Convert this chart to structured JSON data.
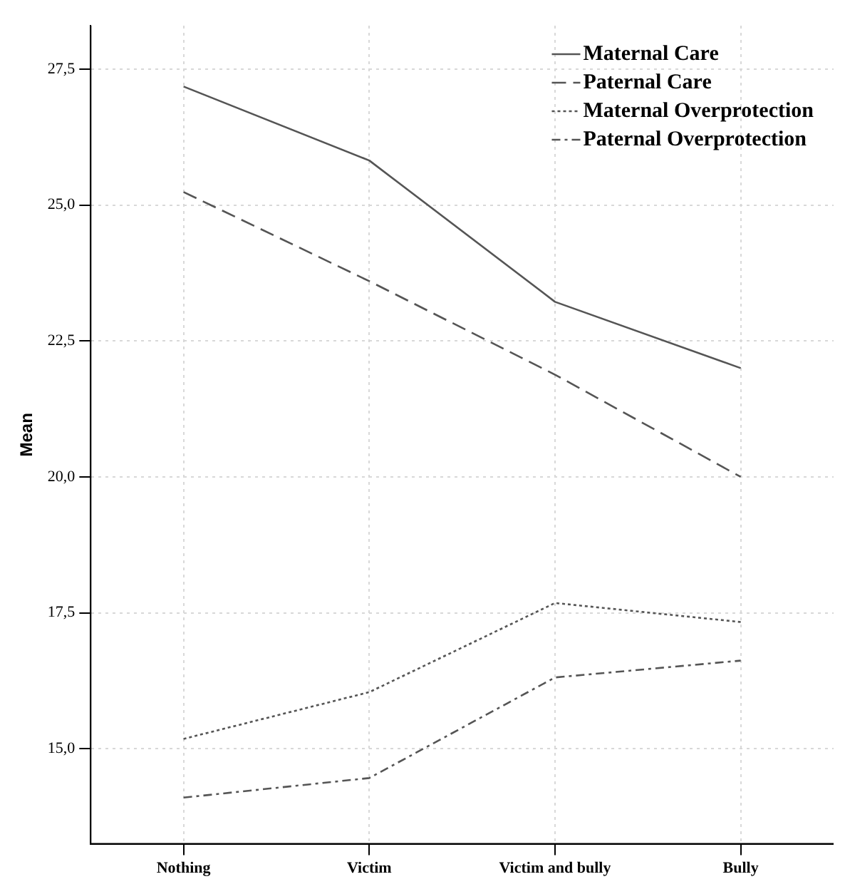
{
  "chart_data": {
    "type": "line",
    "ylabel": "Mean",
    "categories": [
      "Nothing",
      "Victim",
      "Victim and bully",
      "Bully"
    ],
    "series": [
      {
        "name": "Maternal Care",
        "color": "#555555",
        "line_style": "solid",
        "values": [
          27.18,
          25.82,
          23.22,
          22.0
        ]
      },
      {
        "name": "Paternal Care",
        "color": "#555555",
        "line_style": "dashed",
        "values": [
          25.24,
          23.6,
          21.88,
          20.0
        ]
      },
      {
        "name": "Maternal Overprotection",
        "color": "#555555",
        "line_style": "dotted",
        "values": [
          15.18,
          16.04,
          17.68,
          17.33
        ]
      },
      {
        "name": "Paternal Overprotection",
        "color": "#555555",
        "line_style": "dashdot",
        "values": [
          14.1,
          14.46,
          16.31,
          16.62
        ]
      }
    ],
    "ylim": [
      13.25,
      28.3
    ],
    "yticks": [
      {
        "value": 15,
        "label": "15,0"
      },
      {
        "value": 17.5,
        "label": "17,5"
      },
      {
        "value": 20,
        "label": "20,0"
      },
      {
        "value": 22.5,
        "label": "22,5"
      },
      {
        "value": 25,
        "label": "25,0"
      },
      {
        "value": 27.5,
        "label": "27,5"
      }
    ],
    "grid": true,
    "legend": "top right",
    "marker": "none"
  }
}
